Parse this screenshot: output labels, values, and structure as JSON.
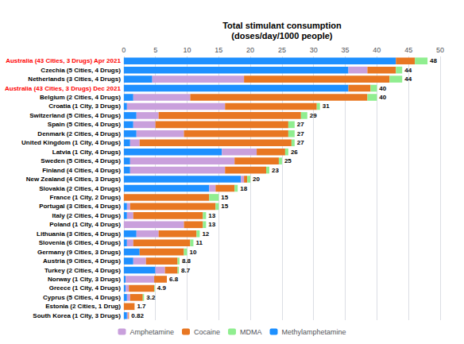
{
  "chart_data": {
    "type": "bar",
    "orientation": "horizontal",
    "stacked": true,
    "xlabel": "Total stimulant consumption\n(doses/day/1000 people)",
    "categories": [
      "Australia (43 Cities, 3 Drugs) Apr 2021",
      "Czechia (5 Cities, 4 Drugs)",
      "Netherlands (3 Cities, 4 Drugs)",
      "Australia (43 Cities, 3 Drugs) Dec 2021",
      "Belgium (2 Cities, 4 Drugs)",
      "Croatia (1 City, 3 Drugs)",
      "Switzerland (5 Cities, 4 Drugs)",
      "Spain (5 Cities, 4 Drugs)",
      "Denmark (2 Cities, 4 Drugs)",
      "United Kingdom (1 City, 4 Drugs)",
      "Latvia (1 City, 4 Drugs)",
      "Sweden (5 Cities, 4 Drugs)",
      "Finland (4 Cities, 4 Drugs)",
      "New Zealand (4 Cities, 3 Drugs)",
      "Slovakia (2 Cities, 4 Drugs)",
      "France (1 City, 2 Drugs)",
      "Portugal (3 Cities, 4 Drugs)",
      "Italy (2 Cities, 4 Drugs)",
      "Poland (1 City, 4 Drugs)",
      "Lithuania (3 Cities, 4 Drugs)",
      "Slovenia (6 Cities, 4 Drugs)",
      "Germany (9 Cities, 3 Drugs)",
      "Austria (9 Cities, 4 Drugs)",
      "Turkey (2 Cities, 4 Drugs)",
      "Norway (1 City, 3 Drugs)",
      "Greece (1 City, 4 Drugs)",
      "Cyprus (5 Cities, 4 Drugs)",
      "Estonia (2 Cities, 1 Drug)",
      "South Korea (1 City, 3 Drugs)"
    ],
    "label_colors": [
      "red",
      "black",
      "black",
      "red",
      "black",
      "black",
      "black",
      "black",
      "black",
      "black",
      "black",
      "black",
      "black",
      "black",
      "black",
      "black",
      "black",
      "black",
      "black",
      "black",
      "black",
      "black",
      "black",
      "black",
      "black",
      "black",
      "black",
      "black",
      "black"
    ],
    "series": [
      {
        "name": "Methylamphetamine",
        "color": "#1e90ff",
        "values": [
          43.0,
          35.5,
          4.5,
          35.5,
          1.5,
          0.5,
          2.0,
          1.5,
          2.0,
          1.0,
          15.5,
          1.0,
          1.0,
          18.5,
          13.5,
          0.0,
          0.5,
          0.5,
          0.0,
          2.0,
          0.5,
          2.5,
          1.5,
          5.0,
          0.3,
          0.3,
          0.5,
          0.0,
          0.5
        ]
      },
      {
        "name": "Amphetamine",
        "color": "#c9a0dc",
        "values": [
          0.0,
          3.0,
          14.5,
          0.0,
          9.0,
          15.5,
          3.5,
          3.5,
          7.5,
          1.5,
          5.5,
          16.5,
          15.0,
          0.5,
          1.0,
          0.0,
          0.5,
          1.0,
          9.5,
          3.5,
          1.0,
          0.0,
          2.0,
          1.5,
          4.5,
          0.5,
          0.5,
          0.0,
          0.2
        ]
      },
      {
        "name": "Cocaine",
        "color": "#e87722",
        "values": [
          3.0,
          4.5,
          23.0,
          3.5,
          28.0,
          14.5,
          22.5,
          21.0,
          16.5,
          24.0,
          4.5,
          7.0,
          6.5,
          0.5,
          3.0,
          13.5,
          13.5,
          11.0,
          3.0,
          6.0,
          9.0,
          7.0,
          5.0,
          2.0,
          2.0,
          4.0,
          2.0,
          1.7,
          0.12
        ]
      },
      {
        "name": "MDMA",
        "color": "#90ee90",
        "values": [
          2.0,
          1.0,
          2.0,
          1.0,
          1.5,
          0.5,
          1.0,
          1.0,
          1.0,
          0.5,
          0.5,
          0.5,
          0.5,
          0.5,
          0.5,
          1.5,
          0.5,
          0.5,
          0.5,
          0.5,
          0.5,
          0.5,
          0.3,
          0.2,
          0.0,
          0.1,
          0.2,
          0.0,
          0.0
        ]
      }
    ],
    "legend_order": [
      "Amphetamine",
      "Cocaine",
      "MDMA",
      "Methylamphetamine"
    ],
    "total_labels": [
      "48",
      "44",
      "44",
      "40",
      "40",
      "31",
      "29",
      "27",
      "27",
      "27",
      "26",
      "25",
      "23",
      "20",
      "18",
      "15",
      "15",
      "13",
      "13",
      "12",
      "11",
      "10",
      "8.8",
      "8.7",
      "6.8",
      "4.9",
      "3.2",
      "1.7",
      "0.82"
    ],
    "xlim": [
      0,
      50
    ],
    "xticks": [
      0,
      5,
      10,
      15,
      20,
      25,
      30,
      35,
      40,
      45,
      50
    ],
    "grid": true,
    "legend": "bottom"
  }
}
